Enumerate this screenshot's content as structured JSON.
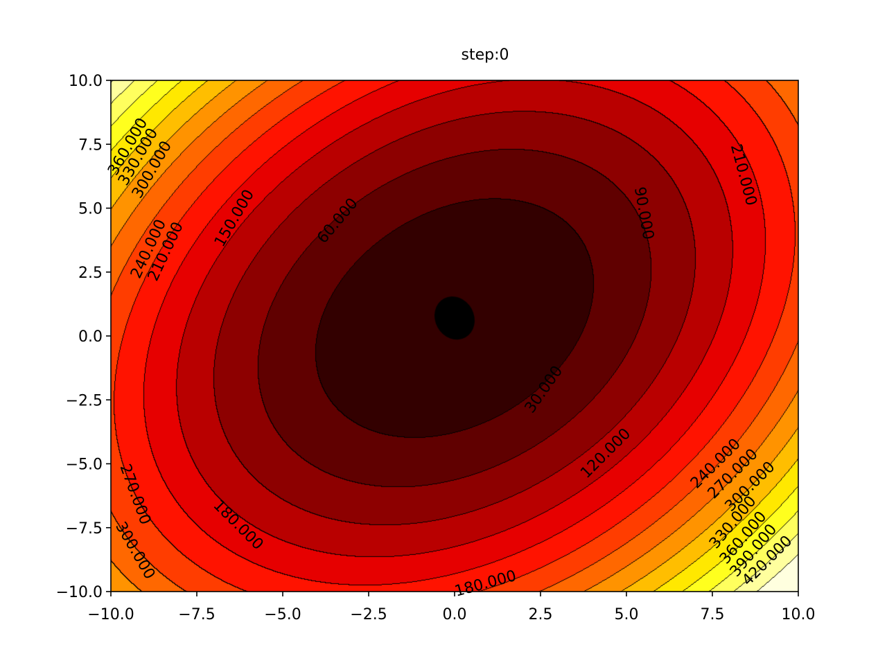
{
  "chart_data": {
    "type": "contour",
    "title": "step:0",
    "xlabel": "",
    "ylabel": "",
    "xlim": [
      -10.0,
      10.0
    ],
    "ylim": [
      -10.0,
      10.0
    ],
    "x_ticks": [
      -10.0,
      -7.5,
      -5.0,
      -2.5,
      0.0,
      2.5,
      5.0,
      7.5,
      10.0
    ],
    "x_tick_labels": [
      "−10.0",
      "−7.5",
      "−5.0",
      "−2.5",
      "0.0",
      "2.5",
      "5.0",
      "7.5",
      "10.0"
    ],
    "y_ticks": [
      -10.0,
      -7.5,
      -5.0,
      -2.5,
      0.0,
      2.5,
      5.0,
      7.5,
      10.0
    ],
    "y_tick_labels": [
      "−10.0",
      "−7.5",
      "−5.0",
      "−2.5",
      "0.0",
      "2.5",
      "5.0",
      "7.5",
      "10.0"
    ],
    "colormap": "hot",
    "levels": [
      0,
      30,
      60,
      90,
      120,
      150,
      180,
      210,
      240,
      270,
      300,
      330,
      360,
      390,
      420,
      450
    ],
    "function": {
      "form": "a*(x-x0)^2 + b*(x-x0)*(y-y0) + c*(y-y0)^2",
      "a": 2.0,
      "b": -1.0,
      "c": 1.5,
      "x0": 0.0,
      "y0": 0.7
    },
    "marker": {
      "x": 0.0,
      "y": 0.7,
      "color": "#000000"
    },
    "contour_labels": [
      {
        "text": "30.000",
        "x": 2.6,
        "y": -2.1,
        "angle": -55
      },
      {
        "text": "60.000",
        "x": -3.4,
        "y": 4.5,
        "angle": -50
      },
      {
        "text": "90.000",
        "x": 5.5,
        "y": 4.8,
        "angle": 80
      },
      {
        "text": "120.000",
        "x": 4.4,
        "y": -4.6,
        "angle": -45
      },
      {
        "text": "150.000",
        "x": -6.4,
        "y": 4.6,
        "angle": -60
      },
      {
        "text": "180.000",
        "x": -6.3,
        "y": -7.4,
        "angle": 45
      },
      {
        "text": "180.000",
        "x": 0.9,
        "y": -9.7,
        "angle": -15
      },
      {
        "text": "210.000",
        "x": -8.4,
        "y": 3.3,
        "angle": -65
      },
      {
        "text": "210.000",
        "x": 8.4,
        "y": 6.3,
        "angle": 75
      },
      {
        "text": "240.000",
        "x": -8.9,
        "y": 3.4,
        "angle": -65
      },
      {
        "text": "240.000",
        "x": 7.6,
        "y": -5.0,
        "angle": -45
      },
      {
        "text": "270.000",
        "x": -9.3,
        "y": -6.2,
        "angle": 70
      },
      {
        "text": "270.000",
        "x": 8.1,
        "y": -5.4,
        "angle": -45
      },
      {
        "text": "300.000",
        "x": -8.8,
        "y": 6.5,
        "angle": -60
      },
      {
        "text": "300.000",
        "x": -9.3,
        "y": -8.4,
        "angle": 60
      },
      {
        "text": "300.000",
        "x": 8.6,
        "y": -5.9,
        "angle": -45
      },
      {
        "text": "330.000",
        "x": -9.2,
        "y": 7.0,
        "angle": -60
      },
      {
        "text": "330.000",
        "x": 8.1,
        "y": -7.3,
        "angle": -50
      },
      {
        "text": "360.000",
        "x": -9.5,
        "y": 7.4,
        "angle": -60
      },
      {
        "text": "360.000",
        "x": 8.4,
        "y": -7.9,
        "angle": -50
      },
      {
        "text": "390.000",
        "x": 8.7,
        "y": -8.4,
        "angle": -50
      },
      {
        "text": "420.000",
        "x": 9.1,
        "y": -8.8,
        "angle": -45
      }
    ]
  }
}
